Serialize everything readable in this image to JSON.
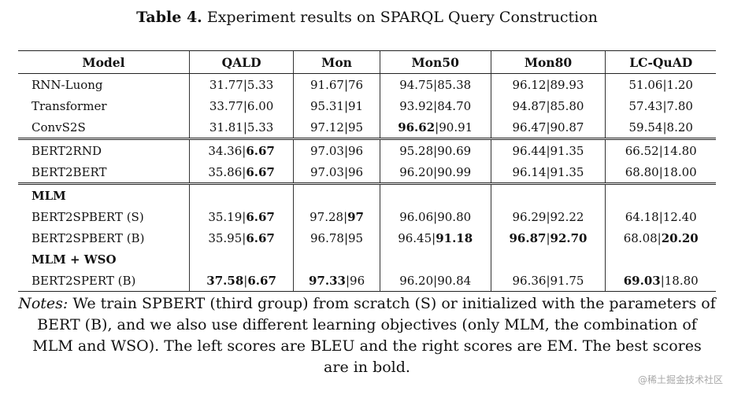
{
  "caption": {
    "label": "Table 4.",
    "text": " Experiment results on SPARQL Query Construction"
  },
  "table": {
    "headers": [
      "Model",
      "QALD",
      "Mon",
      "Mon50",
      "Mon80",
      "LC-QuAD"
    ],
    "rows": [
      {
        "model": "RNN-Luong",
        "cells": [
          [
            "31.77",
            "5.33"
          ],
          [
            "91.67",
            "76"
          ],
          [
            "94.75",
            "85.38"
          ],
          [
            "96.12",
            "89.93"
          ],
          [
            "51.06",
            "1.20"
          ]
        ],
        "bold": []
      },
      {
        "model": "Transformer",
        "cells": [
          [
            "33.77",
            "6.00"
          ],
          [
            "95.31",
            "91"
          ],
          [
            "93.92",
            "84.70"
          ],
          [
            "94.87",
            "85.80"
          ],
          [
            "57.43",
            "7.80"
          ]
        ],
        "bold": []
      },
      {
        "model": "ConvS2S",
        "cells": [
          [
            "31.81",
            "5.33"
          ],
          [
            "97.12",
            "95"
          ],
          [
            "96.62",
            "90.91"
          ],
          [
            "96.47",
            "90.87"
          ],
          [
            "59.54",
            "8.20"
          ]
        ],
        "bold": [
          [
            2,
            0
          ]
        ]
      },
      {
        "model": "BERT2RND",
        "cells": [
          [
            "34.36",
            "6.67"
          ],
          [
            "97.03",
            "96"
          ],
          [
            "95.28",
            "90.69"
          ],
          [
            "96.44",
            "91.35"
          ],
          [
            "66.52",
            "14.80"
          ]
        ],
        "bold": [
          [
            0,
            1
          ]
        ],
        "sep": true
      },
      {
        "model": "BERT2BERT",
        "cells": [
          [
            "35.86",
            "6.67"
          ],
          [
            "97.03",
            "96"
          ],
          [
            "96.20",
            "90.99"
          ],
          [
            "96.14",
            "91.35"
          ],
          [
            "68.80",
            "18.00"
          ]
        ],
        "bold": [
          [
            0,
            1
          ]
        ]
      },
      {
        "group": "MLM",
        "sep": true
      },
      {
        "model": "BERT2SPBERT (S)",
        "cells": [
          [
            "35.19",
            "6.67"
          ],
          [
            "97.28",
            "97"
          ],
          [
            "96.06",
            "90.80"
          ],
          [
            "96.29",
            "92.22"
          ],
          [
            "64.18",
            "12.40"
          ]
        ],
        "bold": [
          [
            0,
            1
          ],
          [
            1,
            1
          ]
        ]
      },
      {
        "model": "BERT2SPBERT (B)",
        "cells": [
          [
            "35.95",
            "6.67"
          ],
          [
            "96.78",
            "95"
          ],
          [
            "96.45",
            "91.18"
          ],
          [
            "96.87",
            "92.70"
          ],
          [
            "68.08",
            "20.20"
          ]
        ],
        "bold": [
          [
            0,
            1
          ],
          [
            2,
            1
          ],
          [
            3,
            0
          ],
          [
            3,
            1
          ],
          [
            4,
            1
          ]
        ]
      },
      {
        "group": "MLM + WSO"
      },
      {
        "model": "BERT2SPERT (B)",
        "cells": [
          [
            "37.58",
            "6.67"
          ],
          [
            "97.33",
            "96"
          ],
          [
            "96.20",
            "90.84"
          ],
          [
            "96.36",
            "91.75"
          ],
          [
            "69.03",
            "18.80"
          ]
        ],
        "bold": [
          [
            0,
            0
          ],
          [
            0,
            1
          ],
          [
            1,
            0
          ],
          [
            4,
            0
          ]
        ],
        "last": true
      }
    ]
  },
  "notes": {
    "label": "Notes:",
    "text": " We train SPBERT (third group) from scratch (S) or initialized with the parameters of BERT (B), and we also use different learning objectives (only MLM, the combination of MLM and WSO). The left scores are BLEU and the right scores are EM. The best scores are in bold."
  },
  "watermark": "@稀土掘金技术社区"
}
